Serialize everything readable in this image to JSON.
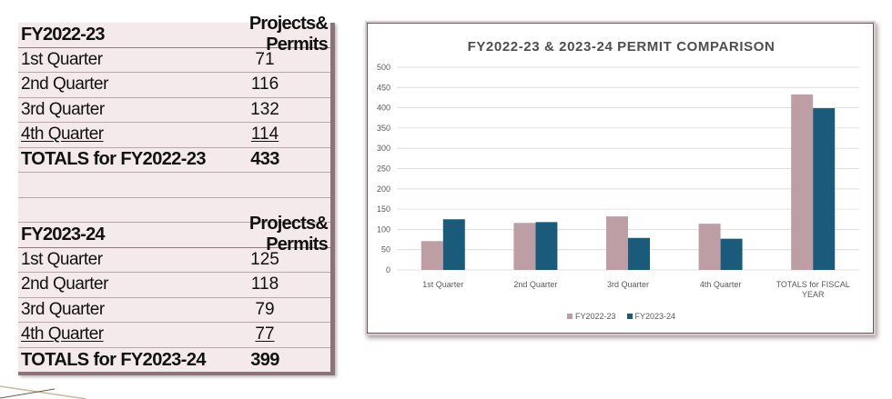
{
  "tables": [
    {
      "header": {
        "label": "FY2022-23",
        "col": "Projects& Permits"
      },
      "rows": [
        {
          "label": "1st Quarter",
          "value": "71"
        },
        {
          "label": "2nd Quarter",
          "value": "116"
        },
        {
          "label": "3rd Quarter",
          "value": "132"
        },
        {
          "label": "4th Quarter",
          "value": "114"
        }
      ],
      "total": {
        "label": "TOTALS for FY2022-23",
        "value": "433"
      }
    },
    {
      "header": {
        "label": "FY2023-24",
        "col": "Projects& Permits"
      },
      "rows": [
        {
          "label": "1st Quarter",
          "value": "125"
        },
        {
          "label": "2nd Quarter",
          "value": "118"
        },
        {
          "label": "3rd Quarter",
          "value": "79"
        },
        {
          "label": "4th Quarter",
          "value": "77"
        }
      ],
      "total": {
        "label": "TOTALS for FY2023-24",
        "value": "399"
      }
    }
  ],
  "chart_data": {
    "type": "bar",
    "title": "FY2022-23 & 2023-24 PERMIT COMPARISON",
    "categories": [
      "1st Quarter",
      "2nd Quarter",
      "3rd Quarter",
      "4th Quarter",
      "TOTALS for FISCAL YEAR"
    ],
    "series": [
      {
        "name": "FY2022-23",
        "values": [
          71,
          116,
          132,
          114,
          433
        ],
        "color": "#bc9ea4"
      },
      {
        "name": "FY2023-24",
        "values": [
          125,
          118,
          79,
          77,
          399
        ],
        "color": "#1a5a7a"
      }
    ],
    "ylim": [
      0,
      500
    ],
    "yticks": [
      0,
      50,
      100,
      150,
      200,
      250,
      300,
      350,
      400,
      450,
      500
    ],
    "grid": true,
    "legend": "bottom"
  }
}
